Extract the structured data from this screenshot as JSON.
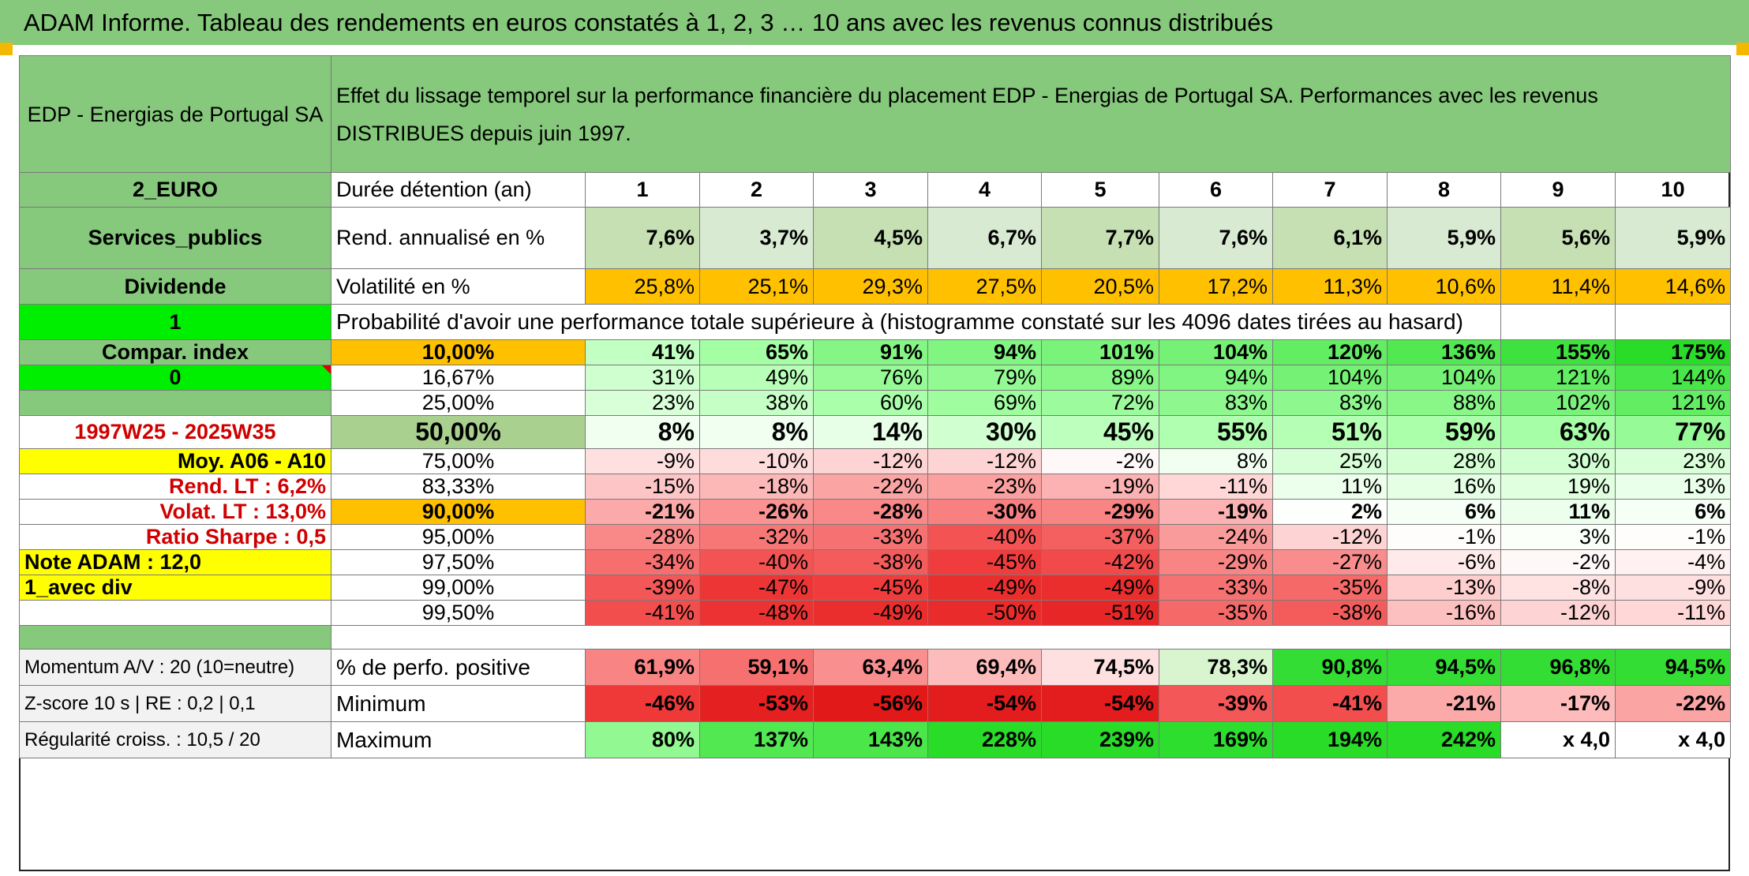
{
  "title": "ADAM Informe. Tableau des rendements en euros constatés à 1, 2, 3 … 10 ans avec les revenus connus distribués",
  "colors": {
    "header_green": "#86c97c",
    "gold": "#ffc000",
    "yellow": "#ffff00",
    "bright_green": "#00ee00",
    "red_text": "#d00000"
  },
  "company": "EDP - Energias de Portugal SA",
  "description": "Effet du lissage temporel sur la performance financière du placement EDP - Energias de Portugal SA. Performances avec les revenus DISTRIBUES depuis juin 1997.",
  "left_labels": {
    "currency": "2_EURO",
    "sector": "Services_publics",
    "dividend": "Dividende",
    "one": "1",
    "compar": "Compar. index",
    "zero": "0",
    "period": "1997W25 - 2025W35",
    "moy": "Moy. A06 - A10",
    "rend_lt": "Rend. LT :   6,2%",
    "volat_lt": "Volat. LT :   13,0%",
    "sharpe": "Ratio Sharpe :    0,5",
    "note": "Note ADAM : 12,0",
    "avec_div": "1_avec div"
  },
  "header_row": {
    "label": "Durée détention (an)",
    "years": [
      "1",
      "2",
      "3",
      "4",
      "5",
      "6",
      "7",
      "8",
      "9",
      "10"
    ]
  },
  "rend_row": {
    "label": "Rend. annualisé en %",
    "values": [
      "7,6%",
      "3,7%",
      "4,5%",
      "6,7%",
      "7,7%",
      "7,6%",
      "6,1%",
      "5,9%",
      "5,6%",
      "5,9%"
    ]
  },
  "vol_row": {
    "label": "Volatilité en %",
    "values": [
      "25,8%",
      "25,1%",
      "29,3%",
      "27,5%",
      "20,5%",
      "17,2%",
      "11,3%",
      "10,6%",
      "11,4%",
      "14,6%"
    ]
  },
  "prob_title": "Probabilité d'avoir une performance totale supérieure à (histogramme constaté sur les 4096 dates tirées au hasard)",
  "percentile_rows": [
    {
      "label": "10,00%",
      "values": [
        "41%",
        "65%",
        "91%",
        "94%",
        "101%",
        "104%",
        "120%",
        "136%",
        "155%",
        "175%"
      ]
    },
    {
      "label": "16,67%",
      "values": [
        "31%",
        "49%",
        "76%",
        "79%",
        "89%",
        "94%",
        "104%",
        "104%",
        "121%",
        "144%"
      ]
    },
    {
      "label": "25,00%",
      "values": [
        "23%",
        "38%",
        "60%",
        "69%",
        "72%",
        "83%",
        "83%",
        "88%",
        "102%",
        "121%"
      ]
    },
    {
      "label": "50,00%",
      "values": [
        "8%",
        "8%",
        "14%",
        "30%",
        "45%",
        "55%",
        "51%",
        "59%",
        "63%",
        "77%"
      ]
    },
    {
      "label": "75,00%",
      "values": [
        "-9%",
        "-10%",
        "-12%",
        "-12%",
        "-2%",
        "8%",
        "25%",
        "28%",
        "30%",
        "23%"
      ]
    },
    {
      "label": "83,33%",
      "values": [
        "-15%",
        "-18%",
        "-22%",
        "-23%",
        "-19%",
        "-11%",
        "11%",
        "16%",
        "19%",
        "13%"
      ]
    },
    {
      "label": "90,00%",
      "values": [
        "-21%",
        "-26%",
        "-28%",
        "-30%",
        "-29%",
        "-19%",
        "2%",
        "6%",
        "11%",
        "6%"
      ]
    },
    {
      "label": "95,00%",
      "values": [
        "-28%",
        "-32%",
        "-33%",
        "-40%",
        "-37%",
        "-24%",
        "-12%",
        "-1%",
        "3%",
        "-1%"
      ]
    },
    {
      "label": "97,50%",
      "values": [
        "-34%",
        "-40%",
        "-38%",
        "-45%",
        "-42%",
        "-29%",
        "-27%",
        "-6%",
        "-2%",
        "-4%"
      ]
    },
    {
      "label": "99,00%",
      "values": [
        "-39%",
        "-47%",
        "-45%",
        "-49%",
        "-49%",
        "-33%",
        "-35%",
        "-13%",
        "-8%",
        "-9%"
      ]
    },
    {
      "label": "99,50%",
      "values": [
        "-41%",
        "-48%",
        "-49%",
        "-50%",
        "-51%",
        "-35%",
        "-38%",
        "-16%",
        "-12%",
        "-11%"
      ]
    }
  ],
  "bottom_rows": [
    {
      "left": "Momentum A/V : 20 (10=neutre)",
      "label": "% de perfo. positive",
      "values": [
        "61,9%",
        "59,1%",
        "63,4%",
        "69,4%",
        "74,5%",
        "78,3%",
        "90,8%",
        "94,5%",
        "96,8%",
        "94,5%"
      ]
    },
    {
      "left": "Z-score 10 s | RE : 0,2 | 0,1",
      "label": "Minimum",
      "values": [
        "-46%",
        "-53%",
        "-56%",
        "-54%",
        "-54%",
        "-39%",
        "-41%",
        "-21%",
        "-17%",
        "-22%"
      ]
    },
    {
      "left": "Régularité croiss. : 10,5 / 20",
      "label": "Maximum",
      "values": [
        "80%",
        "137%",
        "143%",
        "228%",
        "239%",
        "169%",
        "194%",
        "242%",
        "x 4,0",
        "x 4,0"
      ]
    }
  ]
}
